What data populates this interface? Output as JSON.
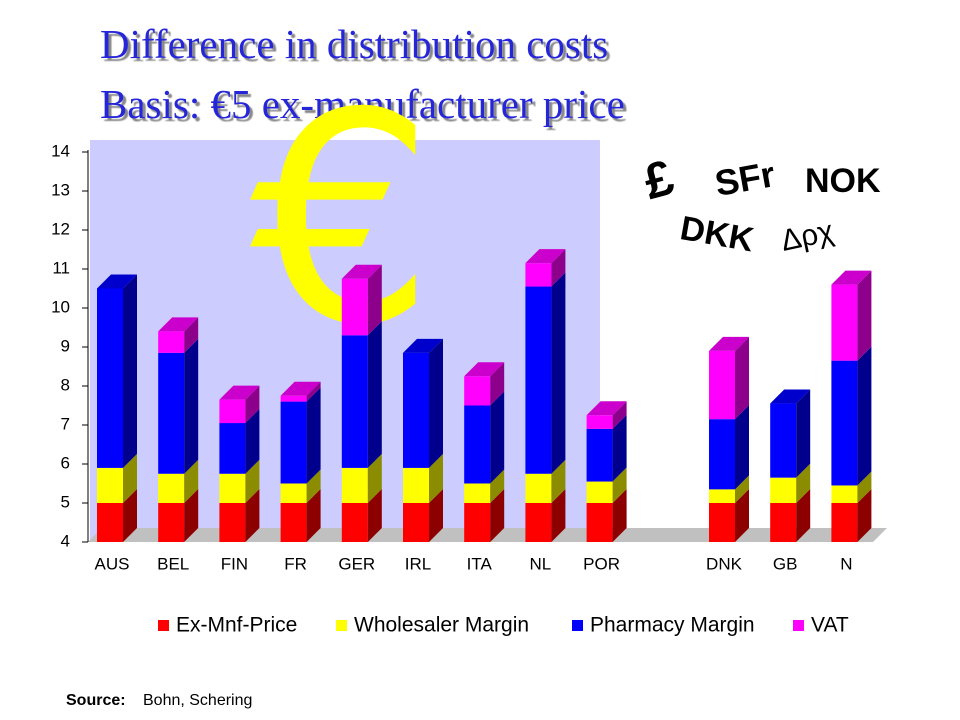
{
  "chart_data": {
    "type": "bar3d_stacked",
    "title": "Difference in distribution costs",
    "subtitle": "Basis: €5 ex-manufacturer price",
    "categories": [
      "AUS",
      "BEL",
      "FIN",
      "FR",
      "GER",
      "IRL",
      "ITA",
      "NL",
      "POR",
      null,
      "DNK",
      "GB",
      "N"
    ],
    "series": [
      {
        "name": "Ex-Mnf-Price",
        "color": "#ff0000",
        "values": [
          5,
          5,
          5,
          5,
          5,
          5,
          5,
          5,
          5,
          null,
          5,
          5,
          5
        ]
      },
      {
        "name": "Wholesaler Margin",
        "color": "#ffff00",
        "values": [
          0.9,
          0.75,
          0.75,
          0.5,
          0.9,
          0.9,
          0.5,
          0.75,
          0.55,
          null,
          0.35,
          0.65,
          0.45
        ]
      },
      {
        "name": "Pharmacy Margin",
        "color": "#0000ff",
        "values": [
          4.6,
          3.1,
          1.3,
          2.1,
          3.4,
          2.95,
          2.0,
          4.8,
          1.35,
          null,
          1.8,
          1.9,
          3.2
        ]
      },
      {
        "name": "VAT",
        "color": "#ff00ff",
        "values": [
          0,
          0.55,
          0.6,
          0.15,
          1.45,
          0,
          0.75,
          0.6,
          0.35,
          null,
          1.75,
          0,
          1.95
        ]
      }
    ],
    "ylim": [
      4,
      14
    ],
    "yticks": [
      4,
      5,
      6,
      7,
      8,
      9,
      10,
      11,
      12,
      13,
      14
    ],
    "annotations": [
      "€",
      "£",
      "SFr",
      "NOK",
      "DKK",
      "Δρχ"
    ],
    "source_label": "Source:",
    "source": "Bohn, Schering"
  }
}
